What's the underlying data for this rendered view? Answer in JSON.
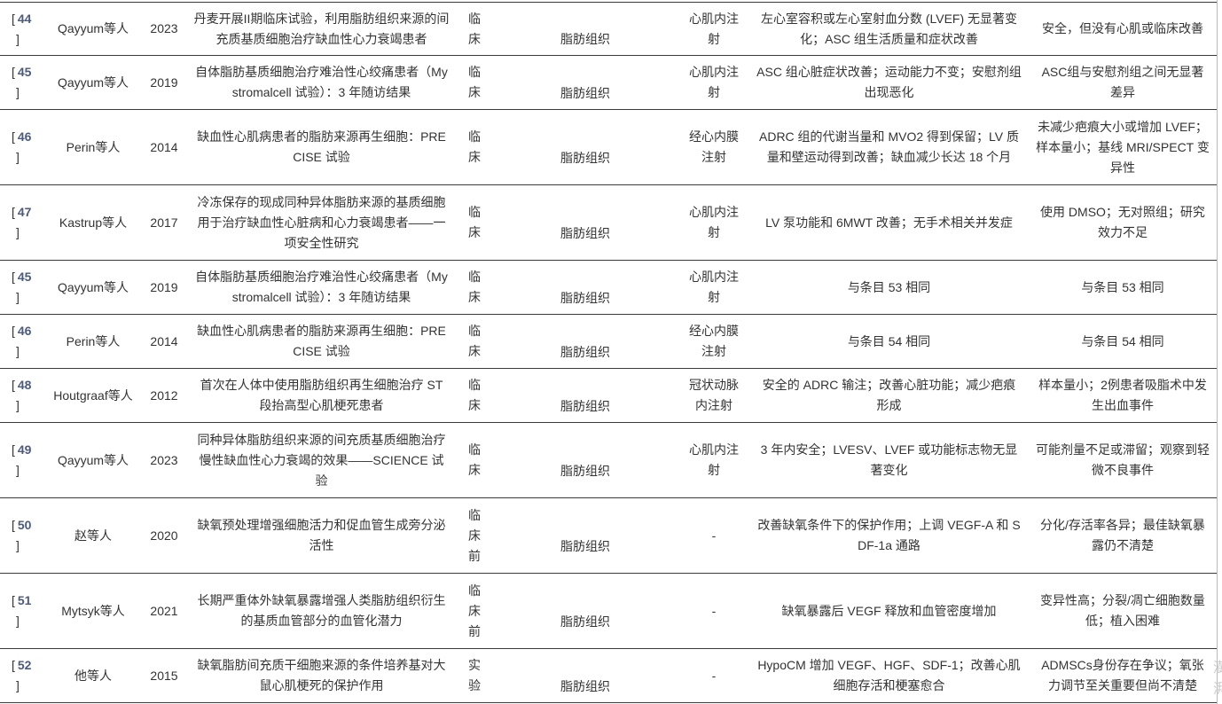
{
  "rows": [
    {
      "ref": "44",
      "author": "Qayyum等人",
      "year": "2023",
      "title": "丹麦开展II期临床试验，利用脂肪组织来源的间充质基质细胞治疗缺血性心力衰竭患者",
      "type": "临床",
      "tissue": "脂肪组织",
      "method": "心肌内注射",
      "outcome": "左心室容积或左心室射血分数 (LVEF) 无显著变化；ASC 组生活质量和症状改善",
      "limitations": "安全，但没有心肌或临床改善"
    },
    {
      "ref": "45",
      "author": "Qayyum等人",
      "year": "2019",
      "title": "自体脂肪基质细胞治疗难治性心绞痛患者（Mystromalcell 试验）：3 年随访结果",
      "type": "临床",
      "tissue": "脂肪组织",
      "method": "心肌内注射",
      "outcome": "ASC 组心脏症状改善；运动能力不变；安慰剂组出现恶化",
      "limitations": "ASC组与安慰剂组之间无显著差异"
    },
    {
      "ref": "46",
      "author": "Perin等人",
      "year": "2014",
      "title": "缺血性心肌病患者的脂肪来源再生细胞：PRECISE 试验",
      "type": "临床",
      "tissue": "脂肪组织",
      "method": "经心内膜注射",
      "outcome": "ADRC 组的代谢当量和 MVO2 得到保留；LV 质量和壁运动得到改善；缺血减少长达 18 个月",
      "limitations": "未减少疤痕大小或增加 LVEF；样本量小；基线 MRI/SPECT 变异性"
    },
    {
      "ref": "47",
      "author": "Kastrup等人",
      "year": "2017",
      "title": "冷冻保存的现成同种异体脂肪来源的基质细胞用于治疗缺血性心脏病和心力衰竭患者——一项安全性研究",
      "type": "临床",
      "tissue": "脂肪组织",
      "method": "心肌内注射",
      "outcome": "LV 泵功能和 6MWT 改善；无手术相关并发症",
      "limitations": "使用 DMSO；无对照组；研究效力不足"
    },
    {
      "ref": "45",
      "author": "Qayyum等人",
      "year": "2019",
      "title": "自体脂肪基质细胞治疗难治性心绞痛患者（Mystromalcell 试验）：3 年随访结果",
      "type": "临床",
      "tissue": "脂肪组织",
      "method": "心肌内注射",
      "outcome": "与条目 53 相同",
      "limitations": "与条目 53 相同"
    },
    {
      "ref": "46",
      "author": "Perin等人",
      "year": "2014",
      "title": "缺血性心肌病患者的脂肪来源再生细胞：PRECISE 试验",
      "type": "临床",
      "tissue": "脂肪组织",
      "method": "经心内膜注射",
      "outcome": "与条目 54 相同",
      "limitations": "与条目 54 相同"
    },
    {
      "ref": "48",
      "author": "Houtgraaf等人",
      "year": "2012",
      "title": "首次在人体中使用脂肪组织再生细胞治疗 ST 段抬高型心肌梗死患者",
      "type": "临床",
      "tissue": "脂肪组织",
      "method": "冠状动脉内注射",
      "outcome": "安全的 ADRC 输注；改善心脏功能；减少疤痕形成",
      "limitations": "样本量小；2例患者吸脂术中发生出血事件"
    },
    {
      "ref": "49",
      "author": "Qayyum等人",
      "year": "2023",
      "title": "同种异体脂肪组织来源的间充质基质细胞治疗慢性缺血性心力衰竭的效果——SCIENCE 试验",
      "type": "临床",
      "tissue": "脂肪组织",
      "method": "心肌内注射",
      "outcome": "3 年内安全；LVESV、LVEF 或功能标志物无显著变化",
      "limitations": "可能剂量不足或滞留；观察到轻微不良事件"
    },
    {
      "ref": "50",
      "author": "赵等人",
      "year": "2020",
      "title": "缺氧预处理增强细胞活力和促血管生成旁分泌活性",
      "type": "临床前",
      "tissue": "脂肪组织",
      "method": "-",
      "outcome": "改善缺氧条件下的保护作用；上调 VEGF-A 和 SDF-1a 通路",
      "limitations": "分化/存活率各异；最佳缺氧暴露仍不清楚"
    },
    {
      "ref": "51",
      "author": "Mytsyk等人",
      "year": "2021",
      "title": "长期严重体外缺氧暴露增强人类脂肪组织衍生的基质血管部分的血管化潜力",
      "type": "临床前",
      "tissue": "脂肪组织",
      "method": "-",
      "outcome": "缺氧暴露后 VEGF 释放和血管密度增加",
      "limitations": "变异性高；分裂/凋亡细胞数量低；植入困难"
    },
    {
      "ref": "52",
      "author": "他等人",
      "year": "2015",
      "title": "缺氧脂肪间充质干细胞来源的条件培养基对大鼠心肌梗死的保护作用",
      "type": "实验",
      "tissue": "脂肪组织",
      "method": "-",
      "outcome": "HypoCM 增加 VEGF、HGF、SDF-1；改善心肌细胞存活和梗塞愈合",
      "limitations": "ADMSCs身份存在争议；氧张力调节至关重要但尚不清楚"
    }
  ],
  "watermark": "澎湃"
}
